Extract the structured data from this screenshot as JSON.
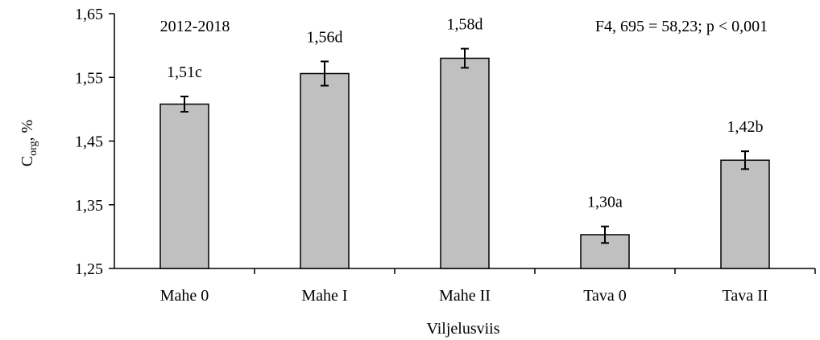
{
  "chart_data": {
    "type": "bar",
    "title": "",
    "period_label": "2012-2018",
    "stats_label": "F4, 695 = 58,23; p < 0,001",
    "xlabel": "Viljelusviis",
    "ylabel_main": "C",
    "ylabel_sub": "org",
    "ylabel_unit": ", %",
    "categories": [
      "Mahe 0",
      "Mahe I",
      "Mahe II",
      "Tava 0",
      "Tava II"
    ],
    "values": [
      1.508,
      1.556,
      1.58,
      1.303,
      1.42
    ],
    "error": [
      0.012,
      0.019,
      0.015,
      0.013,
      0.014
    ],
    "data_labels": [
      "1,51c",
      "1,56d",
      "1,58d",
      "1,30a",
      "1,42b"
    ],
    "ylim": [
      1.25,
      1.65
    ],
    "yticks": [
      1.25,
      1.35,
      1.45,
      1.55,
      1.65
    ],
    "ytick_labels": [
      "1,25",
      "1,35",
      "1,45",
      "1,55",
      "1,65"
    ],
    "grid": false,
    "legend": "none",
    "colors": {
      "bar_fill": "#c0c0c0",
      "bar_stroke": "#000000",
      "axis": "#000000"
    }
  }
}
